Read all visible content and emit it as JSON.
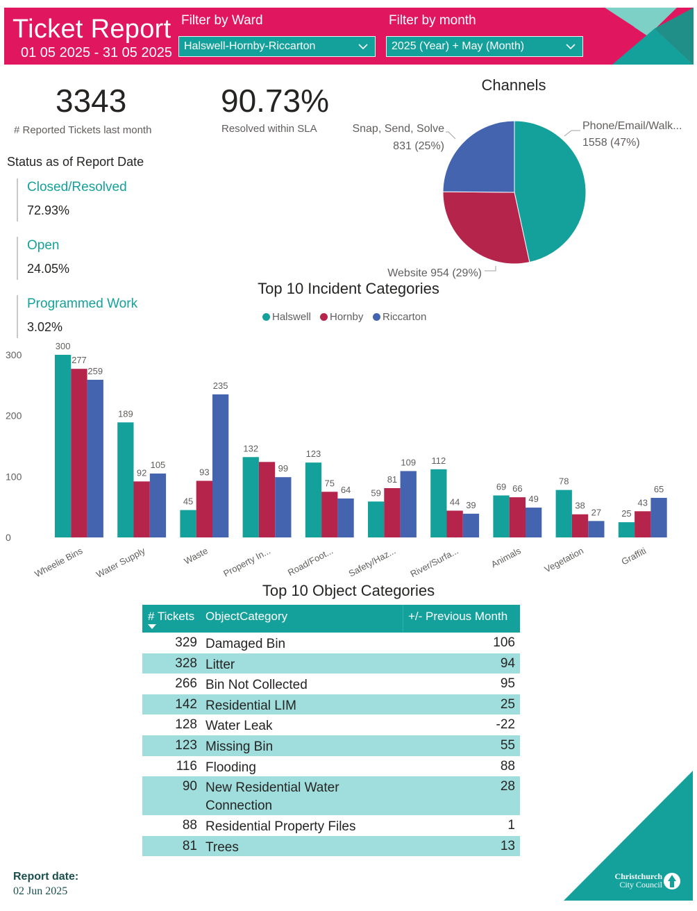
{
  "header": {
    "title": "Ticket Report",
    "date_range": "01 05 2025 - 31 05 2025",
    "ward_filter_label": "Filter by Ward",
    "ward_filter_value": "Halswell-Hornby-Riccarton",
    "month_filter_label": "Filter by month",
    "month_filter_value": "2025 (Year) + May (Month)"
  },
  "kpis": {
    "tickets_value": "3343",
    "tickets_label": "# Reported Tickets last month",
    "sla_value": "90.73%",
    "sla_label": "Resolved within SLA"
  },
  "status": {
    "heading": "Status as of Report Date",
    "items": [
      {
        "label": "Closed/Resolved",
        "value": "72.93%"
      },
      {
        "label": "Open",
        "value": "24.05%"
      },
      {
        "label": "Programmed Work",
        "value": "3.02%"
      }
    ]
  },
  "colors": {
    "brand_pink": "#e0175f",
    "teal": "#14a19c",
    "crimson": "#b5254b",
    "blue": "#4564b0",
    "row_alt": "#9fdedd"
  },
  "chart_data": [
    {
      "type": "pie",
      "title": "Channels",
      "slices": [
        {
          "name": "Phone/Email/Walk...",
          "value": 1558,
          "percent": 47,
          "label": "1558 (47%)",
          "color": "#14a19c"
        },
        {
          "name": "Website",
          "value": 954,
          "percent": 29,
          "label": "954 (29%)",
          "color": "#b5254b"
        },
        {
          "name": "Snap, Send, Solve",
          "value": 831,
          "percent": 25,
          "label": "831 (25%)",
          "color": "#4564b0"
        }
      ]
    },
    {
      "type": "bar",
      "title": "Top 10 Incident Categories",
      "categories": [
        "Wheelie Bins",
        "Water Supply",
        "Waste",
        "Property In...",
        "Road/Foot...",
        "Safety/Haz...",
        "River/Surfa...",
        "Animals",
        "Vegetation",
        "Graffiti"
      ],
      "series": [
        {
          "name": "Halswell",
          "color": "#14a19c",
          "values": [
            300,
            189,
            45,
            132,
            123,
            59,
            112,
            69,
            78,
            25
          ]
        },
        {
          "name": "Hornby",
          "color": "#b5254b",
          "values": [
            277,
            92,
            93,
            124,
            75,
            81,
            44,
            66,
            38,
            43
          ]
        },
        {
          "name": "Riccarton",
          "color": "#4564b0",
          "values": [
            259,
            105,
            235,
            99,
            64,
            109,
            39,
            49,
            27,
            65
          ]
        }
      ],
      "data_labels": [
        [
          "300",
          "189",
          "45",
          "132",
          "123",
          "59",
          "112",
          "69",
          "78",
          "25"
        ],
        [
          "277",
          "92",
          "93",
          "",
          "75",
          "81",
          "44",
          "66",
          "38",
          "43"
        ],
        [
          "259",
          "105",
          "235",
          "99",
          "64",
          "109",
          "39",
          "49",
          "27",
          "65"
        ]
      ],
      "yticks": [
        "0",
        "100",
        "200",
        "300"
      ],
      "ylim": [
        0,
        300
      ],
      "legend": "top-center"
    }
  ],
  "table": {
    "title": "Top 10 Object Categories",
    "headers": [
      "# Tickets",
      "ObjectCategory",
      "+/- Previous Month"
    ],
    "rows": [
      {
        "tickets": "329",
        "category": "Damaged Bin",
        "change": "106"
      },
      {
        "tickets": "328",
        "category": "Litter",
        "change": "94"
      },
      {
        "tickets": "266",
        "category": "Bin Not Collected",
        "change": "95"
      },
      {
        "tickets": "142",
        "category": "Residential LIM",
        "change": "25"
      },
      {
        "tickets": "128",
        "category": "Water Leak",
        "change": "-22"
      },
      {
        "tickets": "123",
        "category": "Missing Bin",
        "change": "55"
      },
      {
        "tickets": "116",
        "category": "Flooding",
        "change": "88"
      },
      {
        "tickets": "90",
        "category": "New Residential Water Connection",
        "change": "28"
      },
      {
        "tickets": "88",
        "category": "Residential Property Files",
        "change": "1"
      },
      {
        "tickets": "81",
        "category": "Trees",
        "change": "13"
      }
    ]
  },
  "footer": {
    "report_date_label": "Report date:",
    "report_date_value": "02 Jun 2025",
    "logo_line1": "Christchurch",
    "logo_line2": "City Council"
  }
}
